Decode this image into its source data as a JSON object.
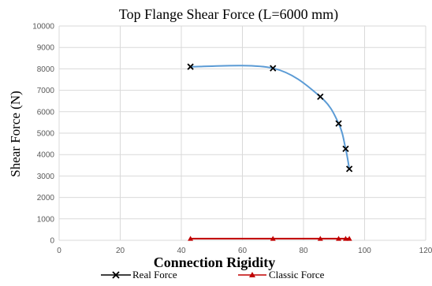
{
  "chart_data": {
    "type": "line",
    "title": "Top Flange Shear Force (L=6000 mm)",
    "xlabel": "Connection Rigidity",
    "ylabel": "Shear Force (N)",
    "xlim": [
      0,
      120
    ],
    "ylim": [
      0,
      10000
    ],
    "x_ticks": [
      "0",
      "20",
      "40",
      "60",
      "80",
      "100",
      "120"
    ],
    "y_ticks": [
      "0",
      "1000",
      "2000",
      "3000",
      "4000",
      "5000",
      "6000",
      "7000",
      "8000",
      "9000",
      "10000"
    ],
    "grid": true,
    "legend_position": "bottom",
    "series": [
      {
        "name": "Real Force",
        "color": "#5b9bd5",
        "marker": "x",
        "points": [
          {
            "x": 43,
            "y": 8100
          },
          {
            "x": 70,
            "y": 8030
          },
          {
            "x": 85.5,
            "y": 6700
          },
          {
            "x": 91.5,
            "y": 5450
          },
          {
            "x": 93.8,
            "y": 4270
          },
          {
            "x": 95,
            "y": 3330
          }
        ]
      },
      {
        "name": "Classic Force",
        "color": "#c00000",
        "marker": "triangle",
        "points": [
          {
            "x": 43,
            "y": 80
          },
          {
            "x": 70,
            "y": 80
          },
          {
            "x": 85.5,
            "y": 80
          },
          {
            "x": 91.5,
            "y": 80
          },
          {
            "x": 93.8,
            "y": 80
          },
          {
            "x": 95,
            "y": 80
          }
        ]
      }
    ]
  }
}
